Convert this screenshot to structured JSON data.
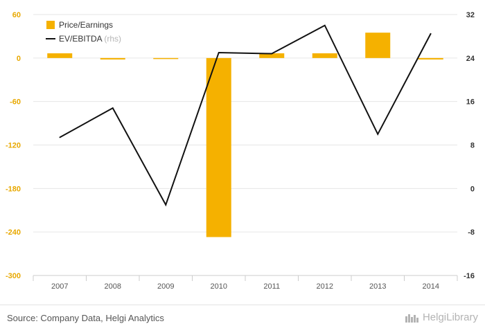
{
  "chart_data": {
    "type": "bar+line",
    "categories": [
      "2007",
      "2008",
      "2009",
      "2010",
      "2011",
      "2012",
      "2013",
      "2014"
    ],
    "series": [
      {
        "name": "Price/Earnings",
        "type": "bar",
        "axis": "left",
        "color": "#f5b100",
        "values": [
          6.5,
          -2.0,
          -1.0,
          -247.0,
          6.5,
          6.5,
          35.0,
          -2.0
        ]
      },
      {
        "name": "EV/EBITDA",
        "name_note": "(rhs)",
        "type": "line",
        "axis": "right",
        "color": "#111111",
        "values": [
          9.4,
          14.8,
          -3.0,
          25.0,
          24.8,
          30.0,
          10.0,
          28.5
        ]
      }
    ],
    "y_left": {
      "min": -300,
      "max": 60,
      "ticks": [
        "60",
        "0",
        "-60",
        "-120",
        "-180",
        "-240",
        "-300"
      ]
    },
    "y_right": {
      "min": -16,
      "max": 32,
      "ticks": [
        "32",
        "24",
        "16",
        "8",
        "0",
        "-8",
        "-16"
      ]
    },
    "grid": true,
    "legend_position": "top-left"
  },
  "footer": {
    "source": "Source: Company Data, Helgi Analytics",
    "brand": "HelgiLibrary"
  }
}
